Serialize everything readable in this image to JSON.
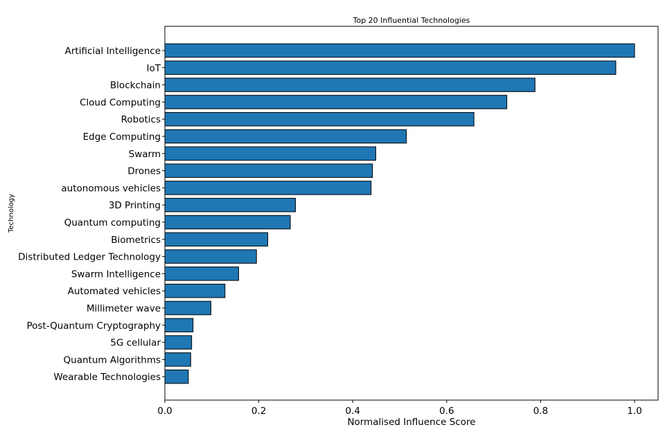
{
  "chart_data": {
    "type": "bar",
    "orientation": "horizontal",
    "title": "Top 20 Influential Technologies",
    "xlabel": "Normalised Influence Score",
    "ylabel": "Technology",
    "xlim": [
      0,
      1.05
    ],
    "xticks": [
      "0.0",
      "0.2",
      "0.4",
      "0.6",
      "0.8",
      "1.0"
    ],
    "grid": false,
    "categories": [
      "Artificial Intelligence",
      "IoT",
      "Blockchain",
      "Cloud Computing",
      "Robotics",
      "Edge Computing",
      "Swarm",
      "Drones",
      "autonomous vehicles",
      "3D Printing",
      "Quantum computing",
      "Biometrics",
      "Distributed Ledger Technology",
      "Swarm Intelligence",
      "Automated vehicles",
      "Millimeter wave",
      "Post-Quantum Cryptography",
      "5G cellular",
      "Quantum Algorithms",
      "Wearable Technologies"
    ],
    "values": [
      1.0,
      0.96,
      0.788,
      0.728,
      0.658,
      0.514,
      0.449,
      0.442,
      0.439,
      0.278,
      0.267,
      0.219,
      0.195,
      0.157,
      0.128,
      0.098,
      0.06,
      0.057,
      0.055,
      0.05
    ],
    "colors": {
      "bar": "#1f77b4",
      "edge": "#000000"
    }
  }
}
